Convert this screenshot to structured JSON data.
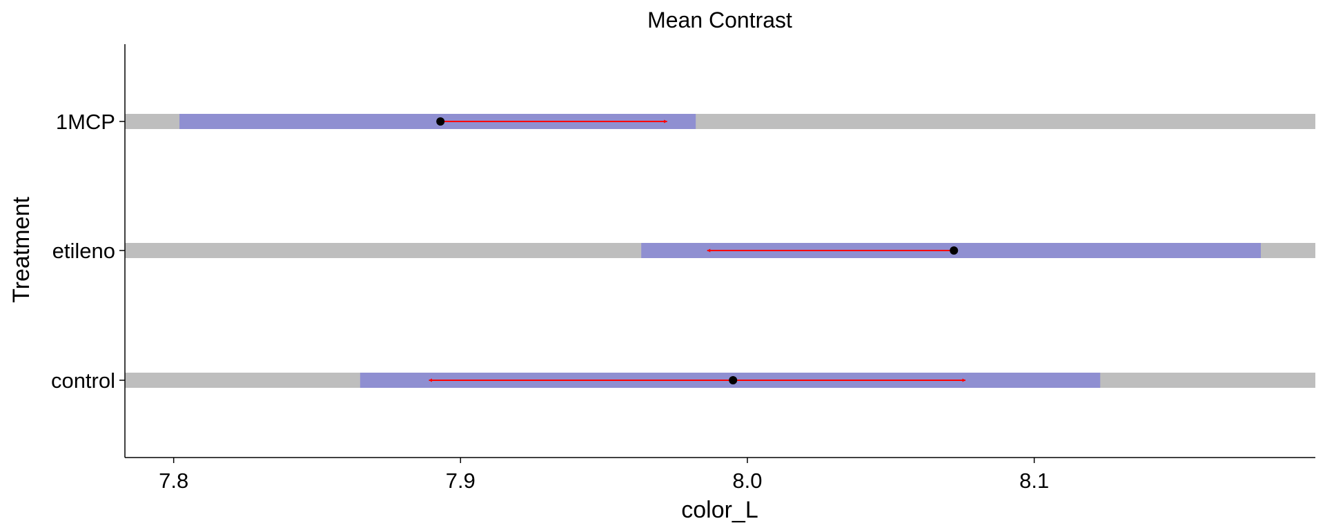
{
  "chart_data": {
    "type": "interval-plot",
    "title": "Mean Contrast",
    "xlabel": "color_L",
    "ylabel": "Treatment",
    "xlim": [
      7.783,
      8.198
    ],
    "x_ticks": [
      "7.8",
      "7.9",
      "8.0",
      "8.1"
    ],
    "categories": [
      "1MCP",
      "etileno",
      "control"
    ],
    "grid": false,
    "legend": "none",
    "series": [
      {
        "category": "1MCP",
        "mean": 7.893,
        "ci_low": 7.802,
        "ci_high": 7.982,
        "arrow_low": 7.893,
        "arrow_high": 7.972
      },
      {
        "category": "etileno",
        "mean": 8.072,
        "ci_low": 7.963,
        "ci_high": 8.179,
        "arrow_low": 7.986,
        "arrow_high": 8.072
      },
      {
        "category": "control",
        "mean": 7.995,
        "ci_low": 7.865,
        "ci_high": 8.123,
        "arrow_low": 7.889,
        "arrow_high": 8.076
      }
    ],
    "colors": {
      "background_band": "#bebebe",
      "interval": "#8f8fd1",
      "arrow": "#ff0000",
      "point": "#000000",
      "axis": "#000000"
    }
  }
}
